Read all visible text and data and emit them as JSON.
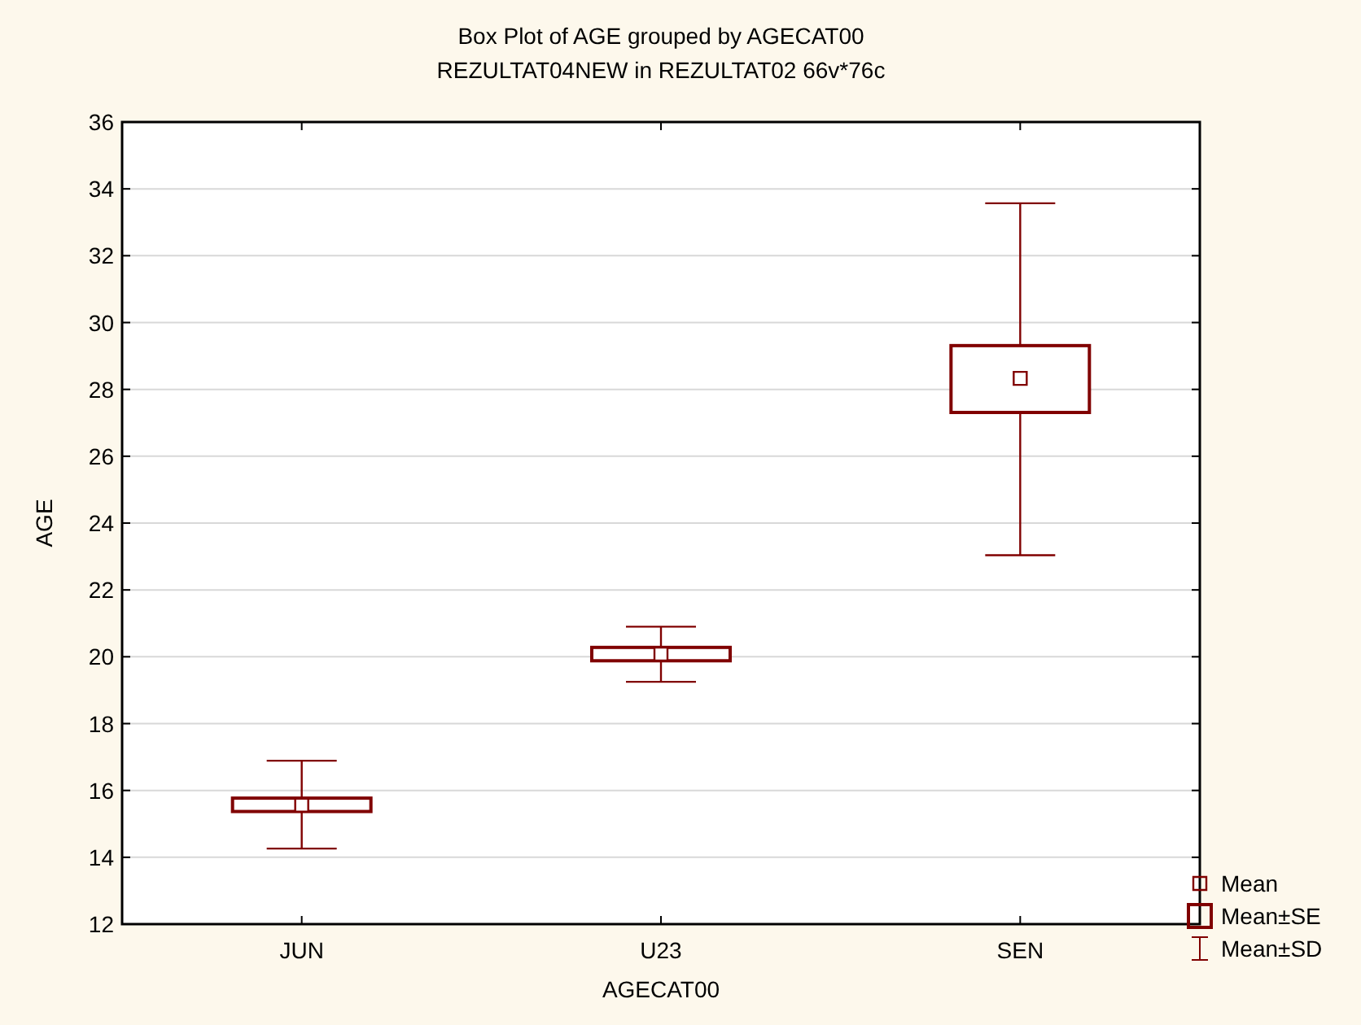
{
  "chart_data": {
    "type": "box",
    "title": "Box Plot of AGE grouped by  AGECAT00",
    "subtitle": "REZULTAT04NEW in REZULTAT02 66v*76c",
    "xlabel": "AGECAT00",
    "ylabel": "AGE",
    "categories": [
      "JUN",
      "U23",
      "SEN"
    ],
    "series": [
      {
        "color": "#800000",
        "boxes": [
          {
            "low": 14.26,
            "q1": 15.37,
            "median": 15.56,
            "q3": 15.77,
            "high": 16.89
          },
          {
            "low": 19.25,
            "q1": 19.88,
            "median": 20.08,
            "q3": 20.28,
            "high": 20.9
          },
          {
            "low": 23.04,
            "q1": 27.31,
            "median": 28.33,
            "q3": 29.31,
            "high": 33.57
          }
        ]
      }
    ],
    "ylim": [
      12,
      36
    ],
    "yticks": [
      12,
      14,
      16,
      18,
      20,
      22,
      24,
      26,
      28,
      30,
      32,
      34,
      36
    ],
    "grid": "y",
    "annotations": [
      "Mean",
      "Mean±SE",
      "Mean±SD"
    ]
  }
}
